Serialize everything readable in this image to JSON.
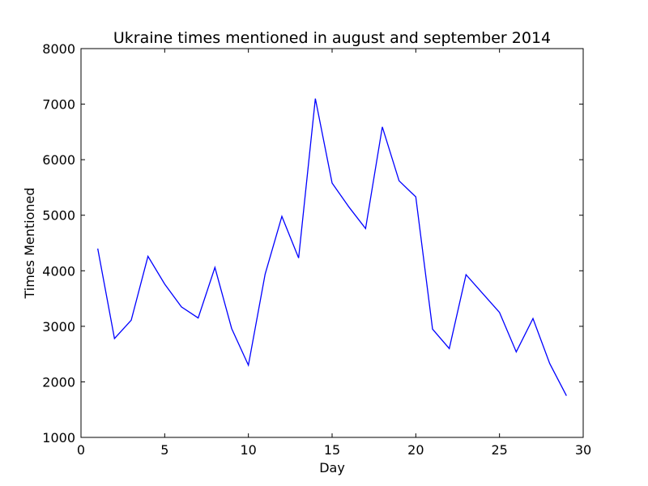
{
  "chart_data": {
    "type": "line",
    "title": "Ukraine times mentioned in august and september 2014",
    "xlabel": "Day",
    "ylabel": "Times Mentioned",
    "xlim": [
      0,
      30
    ],
    "ylim": [
      1000,
      8000
    ],
    "xticks": [
      0,
      5,
      10,
      15,
      20,
      25,
      30
    ],
    "yticks": [
      1000,
      2000,
      3000,
      4000,
      5000,
      6000,
      7000,
      8000
    ],
    "grid": false,
    "series": [
      {
        "color": "#0000ff",
        "x": [
          1,
          2,
          3,
          4,
          5,
          6,
          7,
          8,
          9,
          10,
          11,
          12,
          13,
          14,
          15,
          16,
          17,
          18,
          19,
          20,
          21,
          22,
          23,
          24,
          25,
          26,
          27,
          28,
          29
        ],
        "y": [
          4400,
          2780,
          3110,
          4260,
          3760,
          3350,
          3150,
          4060,
          2960,
          2300,
          3940,
          4980,
          4230,
          7100,
          5580,
          5150,
          4760,
          6590,
          5620,
          5330,
          2950,
          2600,
          3930,
          3590,
          3250,
          2540,
          3140,
          2330,
          1750
        ]
      }
    ]
  }
}
